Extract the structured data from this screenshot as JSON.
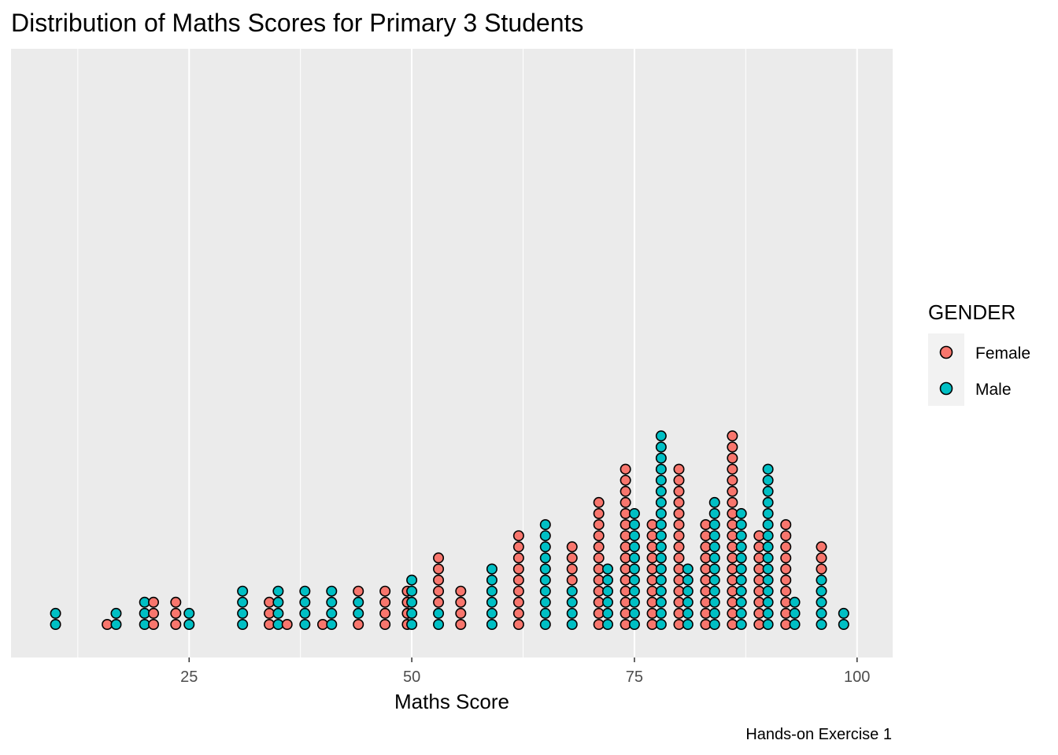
{
  "chart_data": {
    "type": "scatter",
    "subtype": "dotplot",
    "title": "Distribution of Maths Scores for Primary 3 Students",
    "xlabel": "Maths Score",
    "ylabel": "",
    "caption": "Hands-on Exercise 1",
    "xlim": [
      5,
      104
    ],
    "x_ticks": [
      25,
      50,
      75,
      100
    ],
    "grid": true,
    "legend": {
      "title": "GENDER",
      "position": "right",
      "entries": [
        {
          "name": "Female",
          "color": "#F8766D"
        },
        {
          "name": "Male",
          "color": "#00BFC4"
        }
      ]
    },
    "stacks": [
      {
        "x": 10.0,
        "groups": [
          "Male",
          "Male"
        ]
      },
      {
        "x": 15.8,
        "groups": [
          "Female"
        ]
      },
      {
        "x": 16.8,
        "groups": [
          "Male",
          "Male"
        ]
      },
      {
        "x": 20.0,
        "groups": [
          "Male",
          "Male",
          "Male"
        ]
      },
      {
        "x": 21.0,
        "groups": [
          "Female",
          "Female",
          "Female"
        ]
      },
      {
        "x": 23.5,
        "groups": [
          "Female",
          "Female",
          "Female"
        ]
      },
      {
        "x": 25.0,
        "groups": [
          "Male",
          "Male"
        ]
      },
      {
        "x": 31.0,
        "groups": [
          "Male",
          "Male",
          "Male",
          "Male"
        ]
      },
      {
        "x": 34.0,
        "groups": [
          "Female",
          "Female",
          "Female"
        ]
      },
      {
        "x": 35.0,
        "groups": [
          "Male",
          "Male",
          "Male",
          "Male"
        ]
      },
      {
        "x": 36.0,
        "groups": [
          "Female"
        ]
      },
      {
        "x": 38.0,
        "groups": [
          "Male",
          "Male",
          "Male",
          "Male"
        ]
      },
      {
        "x": 40.0,
        "groups": [
          "Female"
        ]
      },
      {
        "x": 41.0,
        "groups": [
          "Male",
          "Male",
          "Male",
          "Male"
        ]
      },
      {
        "x": 44.0,
        "groups": [
          "Female",
          "Male",
          "Male",
          "Female"
        ]
      },
      {
        "x": 47.0,
        "groups": [
          "Female",
          "Female",
          "Female",
          "Female"
        ]
      },
      {
        "x": 49.5,
        "groups": [
          "Female",
          "Female",
          "Female",
          "Female"
        ]
      },
      {
        "x": 50.0,
        "groups": [
          "Male",
          "Male",
          "Male",
          "Male",
          "Male"
        ]
      },
      {
        "x": 53.0,
        "groups": [
          "Male",
          "Male",
          "Female",
          "Female",
          "Female",
          "Female",
          "Female"
        ]
      },
      {
        "x": 55.5,
        "groups": [
          "Female",
          "Female",
          "Female",
          "Female"
        ]
      },
      {
        "x": 59.0,
        "groups": [
          "Male",
          "Male",
          "Male",
          "Male",
          "Male",
          "Male"
        ]
      },
      {
        "x": 62.0,
        "groups": [
          "Female",
          "Female",
          "Female",
          "Female",
          "Female",
          "Female",
          "Female",
          "Female",
          "Female"
        ]
      },
      {
        "x": 65.0,
        "groups": [
          "Male",
          "Male",
          "Male",
          "Male",
          "Male",
          "Male",
          "Male",
          "Male",
          "Male",
          "Male"
        ]
      },
      {
        "x": 68.0,
        "groups": [
          "Male",
          "Male",
          "Male",
          "Male",
          "Female",
          "Female",
          "Female",
          "Female"
        ]
      },
      {
        "x": 71.0,
        "groups": [
          "Female",
          "Female",
          "Female",
          "Female",
          "Female",
          "Female",
          "Female",
          "Female",
          "Female",
          "Female",
          "Female",
          "Female"
        ]
      },
      {
        "x": 72.0,
        "groups": [
          "Male",
          "Male",
          "Male",
          "Male",
          "Male",
          "Male"
        ]
      },
      {
        "x": 74.0,
        "groups": [
          "Female",
          "Female",
          "Female",
          "Female",
          "Female",
          "Female",
          "Female",
          "Female",
          "Female",
          "Female",
          "Female",
          "Female",
          "Female",
          "Female",
          "Female"
        ]
      },
      {
        "x": 75.0,
        "groups": [
          "Male",
          "Male",
          "Male",
          "Male",
          "Male",
          "Male",
          "Male",
          "Male",
          "Male",
          "Male",
          "Male"
        ]
      },
      {
        "x": 77.0,
        "groups": [
          "Female",
          "Female",
          "Female",
          "Female",
          "Female",
          "Female",
          "Female",
          "Female",
          "Female",
          "Female"
        ]
      },
      {
        "x": 78.0,
        "groups": [
          "Male",
          "Male",
          "Male",
          "Male",
          "Male",
          "Male",
          "Male",
          "Male",
          "Male",
          "Male",
          "Male",
          "Male",
          "Male",
          "Male",
          "Male",
          "Male",
          "Male",
          "Male"
        ]
      },
      {
        "x": 80.0,
        "groups": [
          "Female",
          "Female",
          "Female",
          "Female",
          "Female",
          "Female",
          "Female",
          "Female",
          "Female",
          "Female",
          "Female",
          "Female",
          "Female",
          "Female",
          "Female"
        ]
      },
      {
        "x": 81.0,
        "groups": [
          "Male",
          "Male",
          "Male",
          "Male",
          "Male",
          "Male"
        ]
      },
      {
        "x": 83.0,
        "groups": [
          "Female",
          "Female",
          "Female",
          "Female",
          "Female",
          "Female",
          "Female",
          "Female",
          "Female",
          "Female"
        ]
      },
      {
        "x": 84.0,
        "groups": [
          "Male",
          "Male",
          "Male",
          "Male",
          "Male",
          "Male",
          "Male",
          "Male",
          "Male",
          "Male",
          "Male",
          "Male"
        ]
      },
      {
        "x": 86.0,
        "groups": [
          "Female",
          "Female",
          "Female",
          "Female",
          "Female",
          "Female",
          "Female",
          "Female",
          "Female",
          "Female",
          "Female",
          "Female",
          "Female",
          "Female",
          "Female",
          "Female",
          "Female",
          "Female"
        ]
      },
      {
        "x": 87.0,
        "groups": [
          "Male",
          "Male",
          "Male",
          "Male",
          "Male",
          "Male",
          "Male",
          "Male",
          "Male",
          "Male",
          "Male"
        ]
      },
      {
        "x": 89.0,
        "groups": [
          "Female",
          "Female",
          "Female",
          "Female",
          "Female",
          "Female",
          "Female",
          "Female",
          "Female"
        ]
      },
      {
        "x": 90.0,
        "groups": [
          "Male",
          "Male",
          "Male",
          "Male",
          "Male",
          "Male",
          "Male",
          "Male",
          "Male",
          "Male",
          "Male",
          "Male",
          "Male",
          "Male",
          "Male"
        ]
      },
      {
        "x": 92.0,
        "groups": [
          "Female",
          "Female",
          "Female",
          "Female",
          "Female",
          "Female",
          "Female",
          "Female",
          "Female",
          "Female"
        ]
      },
      {
        "x": 93.0,
        "groups": [
          "Male",
          "Male",
          "Male"
        ]
      },
      {
        "x": 96.0,
        "groups": [
          "Male",
          "Male",
          "Male",
          "Male",
          "Male",
          "Female",
          "Female",
          "Female"
        ]
      },
      {
        "x": 98.5,
        "groups": [
          "Male",
          "Male"
        ]
      }
    ]
  }
}
